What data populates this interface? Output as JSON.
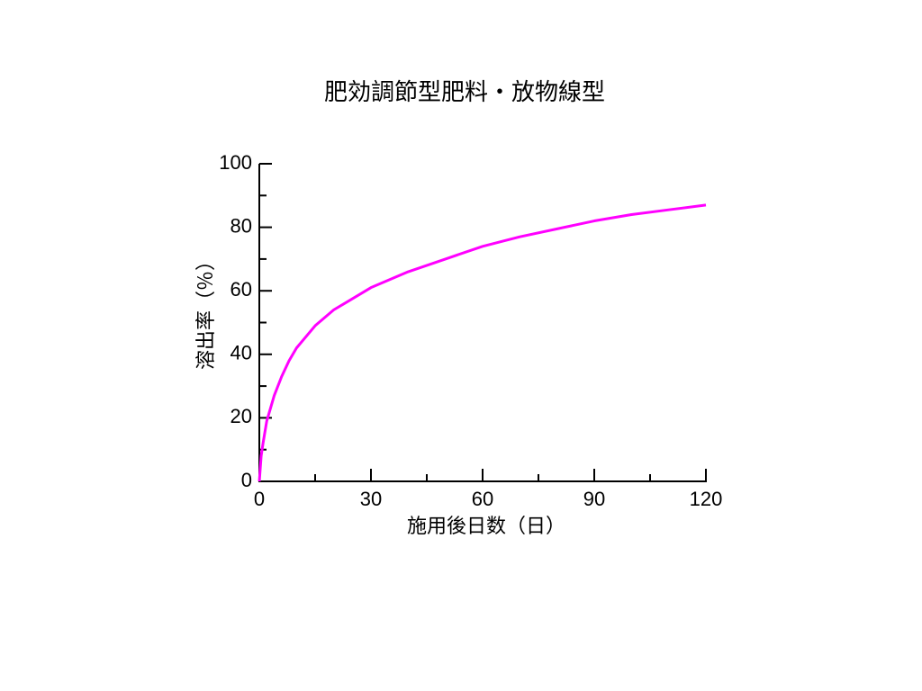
{
  "chart_data": {
    "type": "line",
    "title": "肥効調節型肥料・放物線型",
    "x_label": "施用後日数（日）",
    "y_label": "溶出率（％）",
    "x": [
      0,
      0.5,
      1,
      2,
      4,
      6,
      8,
      10,
      15,
      20,
      30,
      40,
      50,
      60,
      70,
      80,
      90,
      100,
      110,
      120
    ],
    "series": [
      {
        "color": "#ff00ff",
        "values": [
          0,
          8,
          12,
          19,
          27,
          33,
          38,
          42,
          49,
          54,
          61,
          66,
          70,
          74,
          77,
          79.5,
          82,
          84,
          85.5,
          87
        ]
      }
    ],
    "xlim": [
      0,
      120
    ],
    "xticks": [
      0,
      30,
      60,
      90,
      120
    ],
    "xminorticks": [
      15,
      45,
      75,
      105
    ],
    "ylim": [
      0,
      100
    ],
    "yticks": [
      0,
      20,
      40,
      60,
      80,
      100
    ],
    "yminorticks": [
      10,
      30,
      50,
      70,
      90
    ]
  }
}
